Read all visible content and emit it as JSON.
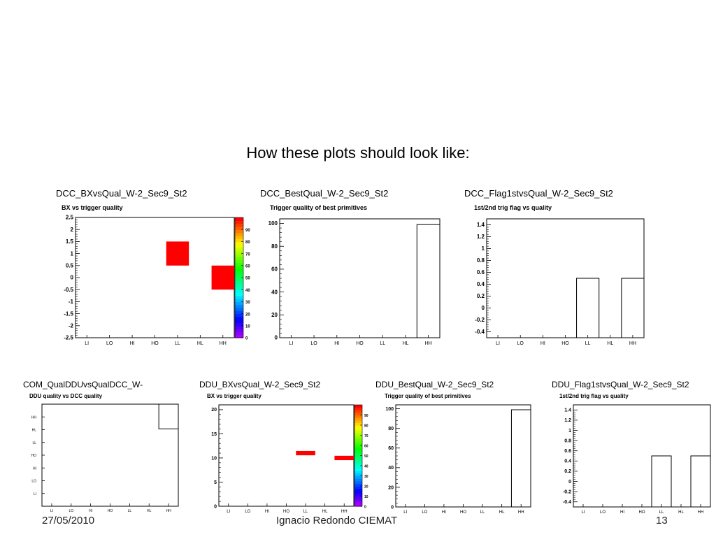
{
  "slide": {
    "heading": "How these plots should look like:",
    "footer_left": "27/05/2010",
    "footer_center": "Ignacio Redondo CIEMAT",
    "footer_right": "13"
  },
  "panels": [
    {
      "id": "p1",
      "name": "DCC_BXvsQual_W-2_Sec9_St2",
      "plot_title": "BX vs trigger quality"
    },
    {
      "id": "p2",
      "name": "DCC_BestQual_W-2_Sec9_St2",
      "plot_title": "Trigger quality of best primitives"
    },
    {
      "id": "p3",
      "name": "DCC_Flag1stvsQual_W-2_Sec9_St2",
      "plot_title": "1st/2nd trig flag vs quality"
    },
    {
      "id": "p4",
      "name": "COM_QualDDUvsQualDCC_W-",
      "plot_title": "DDU quality vs DCC quality"
    },
    {
      "id": "p5",
      "name": "DDU_BXvsQual_W-2_Sec9_St2",
      "plot_title": "BX vs trigger quality"
    },
    {
      "id": "p6",
      "name": "DDU_BestQual_W-2_Sec9_St2",
      "plot_title": "Trigger quality of best primitives"
    },
    {
      "id": "p7",
      "name": "DDU_Flag1stvsQual_W-2_Sec9_St2",
      "plot_title": "1st/2nd trig flag vs quality"
    }
  ],
  "chart_data": [
    {
      "id": "p1",
      "type": "heatmap",
      "title": "BX vs trigger quality",
      "categories": [
        "LI",
        "LO",
        "HI",
        "HO",
        "LL",
        "HL",
        "HH"
      ],
      "yticks": [
        "-2.5",
        "-2",
        "-1.5",
        "-1",
        "-0.5",
        "0",
        "0.5",
        "1",
        "1.5",
        "2",
        "2.5"
      ],
      "ylim": [
        -2.5,
        2.5
      ],
      "cells": [
        {
          "x": "LL",
          "y": 1
        },
        {
          "x": "HH",
          "y": 0
        }
      ],
      "palette_ticks": [
        "0",
        "10",
        "20",
        "30",
        "40",
        "50",
        "60",
        "70",
        "80",
        "90"
      ],
      "palette_range": [
        0,
        100
      ]
    },
    {
      "id": "p2",
      "type": "bar",
      "title": "Trigger quality of best primitives",
      "categories": [
        "LI",
        "LO",
        "HI",
        "HO",
        "LL",
        "HL",
        "HH"
      ],
      "values": [
        0,
        0,
        0,
        0,
        0,
        0,
        99
      ],
      "yticks": [
        "0",
        "20",
        "40",
        "60",
        "80",
        "100"
      ],
      "ylim": [
        0,
        104
      ]
    },
    {
      "id": "p3",
      "type": "bar",
      "title": "1st/2nd trig flag vs quality",
      "categories": [
        "LI",
        "LO",
        "HI",
        "HO",
        "LL",
        "HL",
        "HH"
      ],
      "values": [
        0,
        0,
        0,
        0,
        0.5,
        0,
        0.5
      ],
      "baseline": -0.5,
      "yticks": [
        "-0.4",
        "-0.2",
        "0",
        "0.2",
        "0.4",
        "0.6",
        "0.8",
        "1",
        "1.2",
        "1.4"
      ],
      "ylim": [
        -0.5,
        1.5
      ]
    },
    {
      "id": "p4",
      "type": "heatmap",
      "title": "DDU quality vs DCC quality",
      "categories": [
        "LI",
        "LO",
        "HI",
        "HO",
        "LL",
        "HL",
        "HH"
      ],
      "ycategories": [
        "LI",
        "LO",
        "HI",
        "HO",
        "LL",
        "HL",
        "HH"
      ],
      "outlined_cells": [
        {
          "x": "HH",
          "y": "HH"
        }
      ]
    },
    {
      "id": "p5",
      "type": "heatmap",
      "title": "BX vs trigger quality",
      "categories": [
        "LI",
        "LO",
        "HI",
        "HO",
        "LL",
        "HL",
        "HH"
      ],
      "yticks": [
        "0",
        "5",
        "10",
        "15",
        "20"
      ],
      "ylim": [
        0,
        21
      ],
      "cells": [
        {
          "x": "LL",
          "y": 11
        },
        {
          "x": "HH",
          "y": 10
        }
      ],
      "palette_ticks": [
        "0",
        "10",
        "20",
        "30",
        "40",
        "50",
        "60",
        "70",
        "80",
        "90"
      ],
      "palette_range": [
        0,
        100
      ]
    },
    {
      "id": "p6",
      "type": "bar",
      "title": "Trigger quality of best primitives",
      "categories": [
        "LI",
        "LO",
        "HI",
        "HO",
        "LL",
        "HL",
        "HH"
      ],
      "values": [
        0,
        0,
        0,
        0,
        0,
        0,
        99
      ],
      "yticks": [
        "0",
        "20",
        "40",
        "60",
        "80",
        "100"
      ],
      "ylim": [
        0,
        104
      ]
    },
    {
      "id": "p7",
      "type": "bar",
      "title": "1st/2nd trig flag vs quality",
      "categories": [
        "LI",
        "LO",
        "HI",
        "HO",
        "LL",
        "HL",
        "HH"
      ],
      "values": [
        0,
        0,
        0,
        0,
        0.5,
        0,
        0.5
      ],
      "baseline": -0.5,
      "yticks": [
        "-0.4",
        "-0.2",
        "0",
        "0.2",
        "0.4",
        "0.6",
        "0.8",
        "1",
        "1.2",
        "1.4"
      ],
      "ylim": [
        -0.5,
        1.5
      ]
    }
  ]
}
